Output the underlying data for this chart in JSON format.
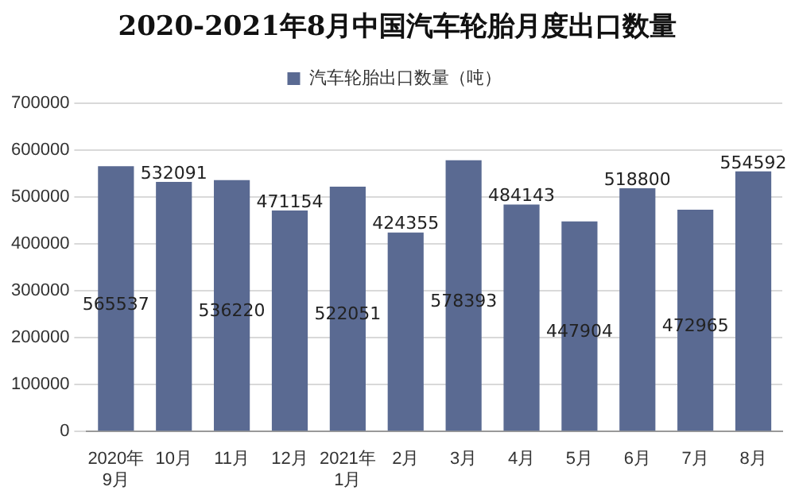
{
  "chart_data": {
    "type": "bar",
    "title": "2020-2021年8月中国汽车轮胎月度出口数量",
    "categories": [
      "2020年\n9月",
      "10月",
      "11月",
      "12月",
      "2021年\n1月",
      "2月",
      "3月",
      "4月",
      "5月",
      "6月",
      "7月",
      "8月"
    ],
    "series": [
      {
        "name": "汽车轮胎出口数量（吨）",
        "color": "#5a6a92",
        "values": [
          565537,
          532091,
          536220,
          471154,
          522051,
          424355,
          578393,
          484143,
          447904,
          518800,
          472965,
          554592
        ]
      }
    ],
    "ylim": [
      0,
      700000
    ],
    "yticks": [
      0,
      100000,
      200000,
      300000,
      400000,
      500000,
      600000,
      700000
    ],
    "grid": "y",
    "legend": "top",
    "data_labels": true
  }
}
